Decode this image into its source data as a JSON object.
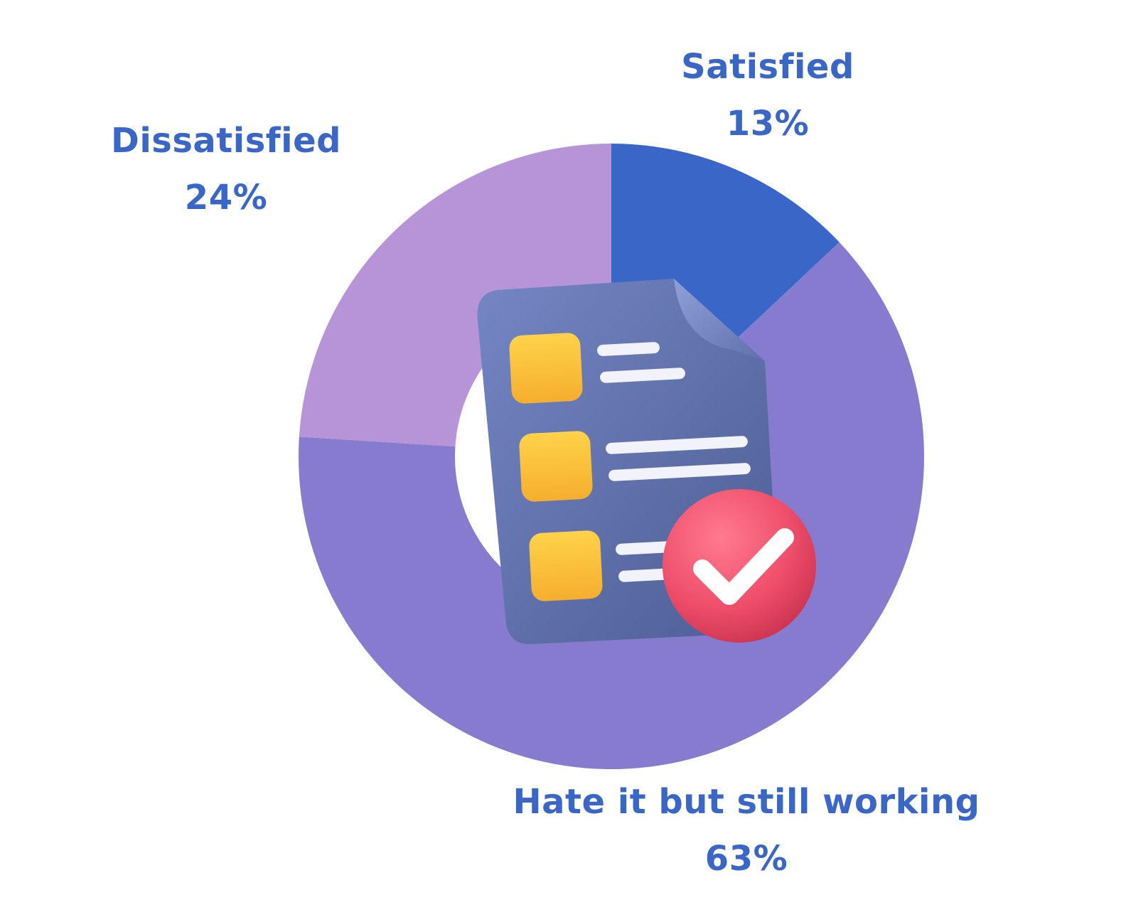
{
  "chart_data": {
    "type": "pie",
    "donut": true,
    "start": "top",
    "direction": "clockwise",
    "series": [
      {
        "name": "Satisfied",
        "value": 13,
        "value_label": "13%",
        "color": "#3A66C8"
      },
      {
        "name": "Hate it but still working",
        "value": 63,
        "value_label": "63%",
        "color": "#877BCF"
      },
      {
        "name": "Dissatisfied",
        "value": 24,
        "value_label": "24%",
        "color": "#B793D8"
      }
    ]
  },
  "colors": {
    "label_text": "#3A66C8",
    "background": "#FFFFFF"
  },
  "illustration": {
    "icon": "survey-checklist-icon",
    "colors": {
      "page": "#6A7FB8",
      "boxes": "#FFC33F",
      "lines": "#F2F2FA",
      "badge": "#EF4F6B",
      "check": "#FFFFFF"
    }
  }
}
